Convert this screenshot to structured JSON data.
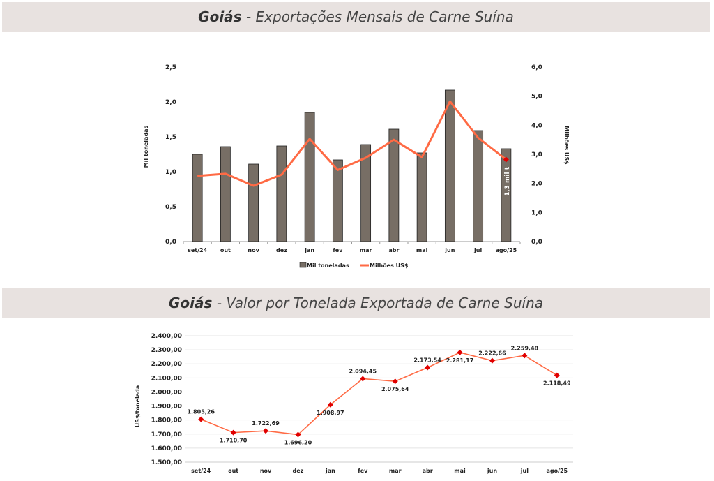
{
  "charts_header": [
    {
      "bold": "Goiás",
      "rest": " - Exportações Mensais de Carne Suína"
    },
    {
      "bold": "Goiás",
      "rest": " - Valor por Tonelada Exportada de Carne Suína"
    }
  ],
  "chart_data": [
    {
      "type": "bar",
      "title": "Goiás - Exportações Mensais de Carne Suína",
      "categories": [
        "set/24",
        "out",
        "nov",
        "dez",
        "jan",
        "fev",
        "mar",
        "abr",
        "mai",
        "jun",
        "jul",
        "ago/25"
      ],
      "ylabel": "Mil toneladas",
      "y2label": "Milhões US$",
      "ylim": [
        0,
        2.5
      ],
      "y2lim": [
        0,
        6.0
      ],
      "yticks": [
        "0,0",
        "0,5",
        "1,0",
        "1,5",
        "2,0",
        "2,5"
      ],
      "y2ticks": [
        "0,0",
        "1,0",
        "2,0",
        "3,0",
        "4,0",
        "5,0",
        "6,0"
      ],
      "series": [
        {
          "name": "Mil toneladas",
          "type": "bar",
          "axis": "left",
          "color": "#776e65",
          "values": [
            1.25,
            1.36,
            1.11,
            1.37,
            1.85,
            1.17,
            1.39,
            1.61,
            1.27,
            2.17,
            1.59,
            1.33
          ]
        },
        {
          "name": "Milhões US$",
          "type": "line",
          "axis": "right",
          "color": "#ff6a44",
          "values": [
            2.26,
            2.33,
            1.92,
            2.3,
            3.53,
            2.46,
            2.88,
            3.5,
            2.9,
            4.82,
            3.57,
            2.82
          ]
        }
      ],
      "annotation": "1,3 mil t",
      "legend": "bottom",
      "grid": false
    },
    {
      "type": "line",
      "title": "Goiás - Valor por Tonelada Exportada de Carne Suína",
      "categories": [
        "set/24",
        "out",
        "nov",
        "dez",
        "jan",
        "fev",
        "mar",
        "abr",
        "mai",
        "jun",
        "jul",
        "ago/25"
      ],
      "ylabel": "US$/tonelada",
      "ylim": [
        1500,
        2400
      ],
      "yticks": [
        "1.500,00",
        "1.600,00",
        "1.700,00",
        "1.800,00",
        "1.900,00",
        "2.000,00",
        "2.100,00",
        "2.200,00",
        "2.300,00",
        "2.400,00"
      ],
      "series": [
        {
          "color": "#ff6a44",
          "marker_color": "#e00000",
          "values": [
            1805.26,
            1710.7,
            1722.69,
            1696.2,
            1908.97,
            2094.45,
            2075.64,
            2173.54,
            2281.17,
            2222.66,
            2259.48,
            2118.49
          ],
          "labels": [
            "1.805,26",
            "1.710,70",
            "1.722,69",
            "1.696,20",
            "1.908,97",
            "2.094,45",
            "2.075,64",
            "2.173,54",
            "2.281,17",
            "2.222,66",
            "2.259,48",
            "2.118,49"
          ]
        }
      ],
      "legend": "none",
      "grid": true
    }
  ]
}
